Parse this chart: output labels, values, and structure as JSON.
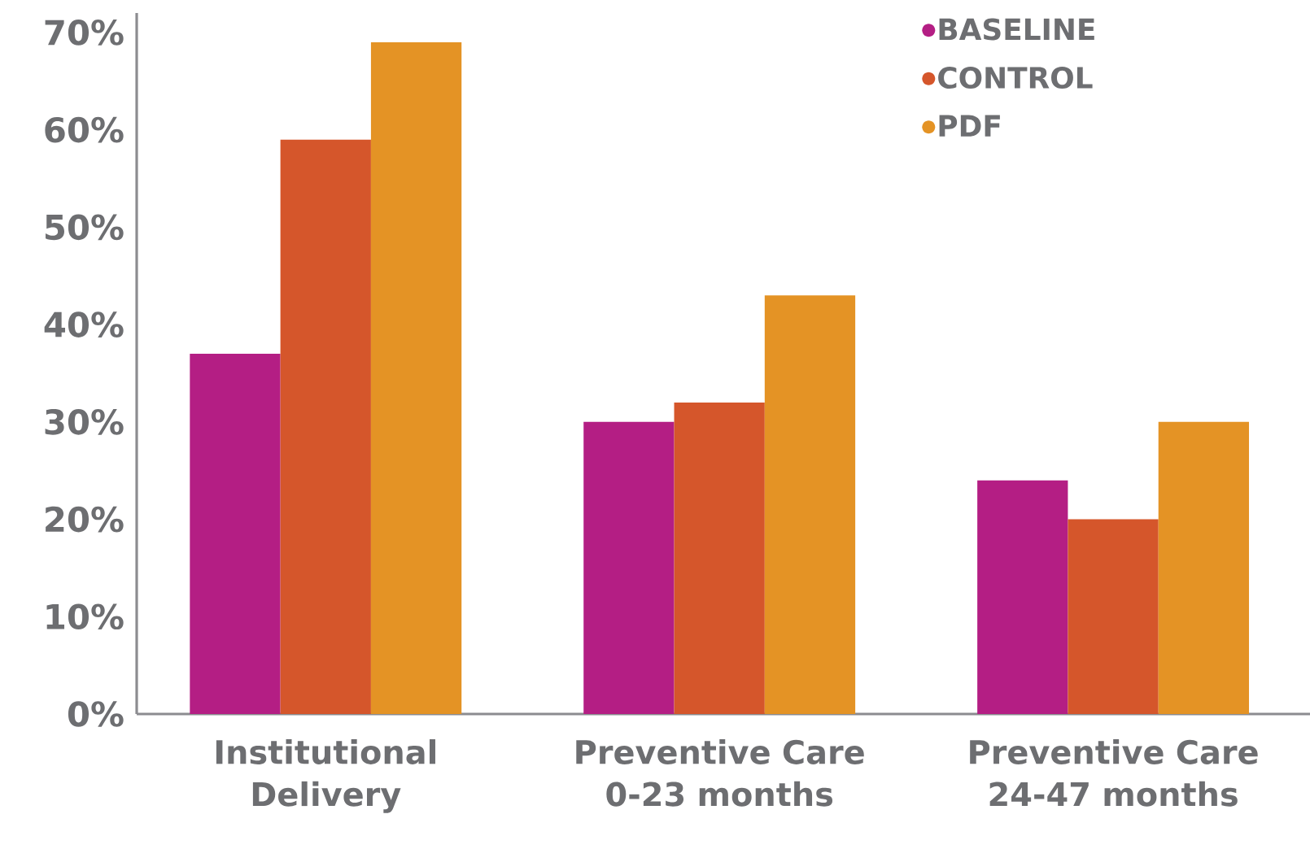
{
  "chart_data": {
    "type": "bar",
    "categories": [
      "Institutional Delivery",
      "Preventive Care 0-23 months",
      "Preventive Care 24-47 months"
    ],
    "series": [
      {
        "name": "BASELINE",
        "color": "#b41e84",
        "values": [
          37,
          30,
          24
        ]
      },
      {
        "name": "CONTROL",
        "color": "#d5562b",
        "values": [
          59,
          32,
          20
        ]
      },
      {
        "name": "PDF",
        "color": "#e49325",
        "values": [
          69,
          43,
          30
        ]
      }
    ],
    "ylim": [
      0,
      72
    ],
    "yticks": [
      {
        "value": 0,
        "label": "0%"
      },
      {
        "value": 10,
        "label": "10%"
      },
      {
        "value": 20,
        "label": "20%"
      },
      {
        "value": 30,
        "label": "30%"
      },
      {
        "value": 40,
        "label": "40%"
      },
      {
        "value": 50,
        "label": "50%"
      },
      {
        "value": 60,
        "label": "60%"
      },
      {
        "value": 70,
        "label": "70%"
      }
    ],
    "legend": "top right"
  }
}
